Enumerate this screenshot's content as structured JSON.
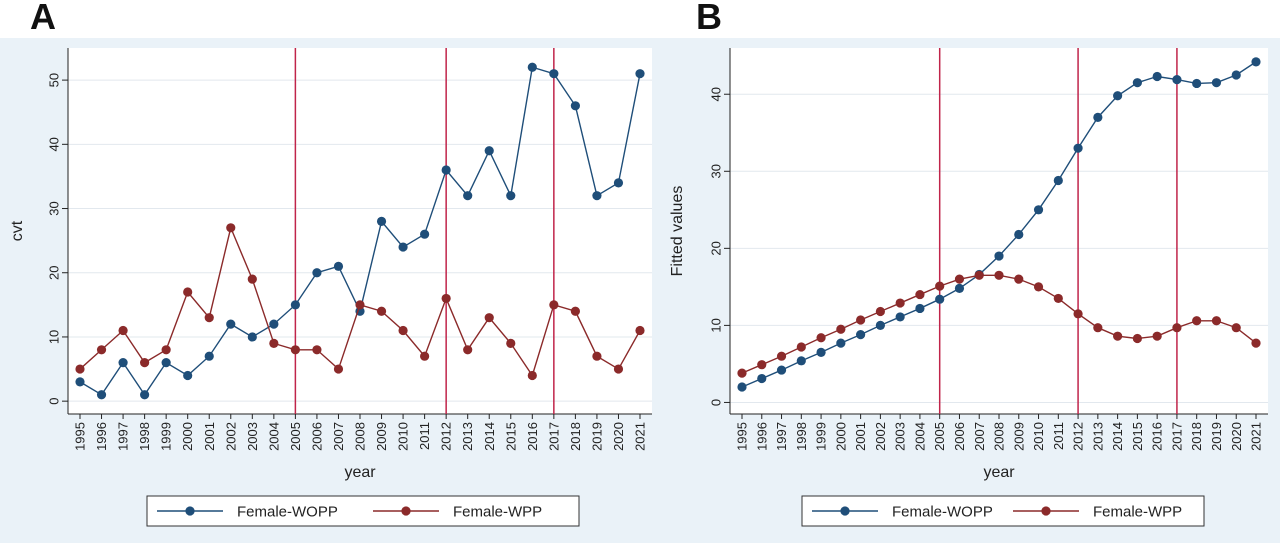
{
  "panels": [
    {
      "letter": "A"
    },
    {
      "letter": "B"
    }
  ],
  "chart_data": [
    {
      "type": "line",
      "xlabel": "year",
      "ylabel": "cvt",
      "ylim": [
        -2,
        55
      ],
      "yticks": [
        0,
        10,
        20,
        30,
        40,
        50
      ],
      "x": [
        "1995",
        "1996",
        "1997",
        "1998",
        "1999",
        "2000",
        "2001",
        "2002",
        "2003",
        "2004",
        "2005",
        "2006",
        "2007",
        "2008",
        "2009",
        "2010",
        "2011",
        "2012",
        "2013",
        "2014",
        "2015",
        "2016",
        "2017",
        "2018",
        "2019",
        "2020",
        "2021"
      ],
      "vlines": [
        "2005",
        "2012",
        "2017"
      ],
      "grid": true,
      "legend_position": "bottom",
      "colors": {
        "wopp": "#1f4e79",
        "wpp": "#8b2a2a",
        "vline": "#c0244a",
        "plot_bg": "#ffffff",
        "outer_bg": "#eaf2f8"
      },
      "series": [
        {
          "name": "Female-WOPP",
          "values": [
            3,
            1,
            6,
            1,
            6,
            4,
            7,
            12,
            10,
            12,
            15,
            20,
            21,
            14,
            28,
            24,
            26,
            36,
            32,
            39,
            32,
            52,
            51,
            46,
            32,
            34,
            51
          ]
        },
        {
          "name": "Female-WPP",
          "values": [
            5,
            8,
            11,
            6,
            8,
            17,
            13,
            27,
            19,
            9,
            8,
            8,
            5,
            15,
            14,
            11,
            7,
            16,
            8,
            13,
            9,
            4,
            15,
            14,
            7,
            5,
            11
          ]
        }
      ]
    },
    {
      "type": "line",
      "xlabel": "year",
      "ylabel": "Fitted values",
      "ylim": [
        -1.5,
        46
      ],
      "yticks": [
        0,
        10,
        20,
        30,
        40
      ],
      "x": [
        "1995",
        "1996",
        "1997",
        "1998",
        "1999",
        "2000",
        "2001",
        "2002",
        "2003",
        "2004",
        "2005",
        "2006",
        "2007",
        "2008",
        "2009",
        "2010",
        "2011",
        "2012",
        "2013",
        "2014",
        "2015",
        "2016",
        "2017",
        "2018",
        "2019",
        "2020",
        "2021"
      ],
      "vlines": [
        "2005",
        "2012",
        "2017"
      ],
      "grid": true,
      "legend_position": "bottom",
      "colors": {
        "wopp": "#1f4e79",
        "wpp": "#8b2a2a",
        "vline": "#c0244a",
        "plot_bg": "#ffffff",
        "outer_bg": "#eaf2f8"
      },
      "series": [
        {
          "name": "Female-WOPP",
          "values": [
            2,
            3.1,
            4.2,
            5.4,
            6.5,
            7.7,
            8.8,
            10,
            11.1,
            12.2,
            13.4,
            14.8,
            16.6,
            19,
            21.8,
            25,
            28.8,
            33,
            37,
            39.8,
            41.5,
            42.3,
            41.9,
            41.4,
            41.5,
            42.5,
            44.2
          ]
        },
        {
          "name": "Female-WPP",
          "values": [
            3.8,
            4.9,
            6,
            7.2,
            8.4,
            9.5,
            10.7,
            11.8,
            12.9,
            14,
            15.1,
            16,
            16.5,
            16.5,
            16,
            15,
            13.5,
            11.5,
            9.7,
            8.6,
            8.3,
            8.6,
            9.7,
            10.6,
            10.6,
            9.7,
            7.7
          ]
        }
      ]
    }
  ]
}
